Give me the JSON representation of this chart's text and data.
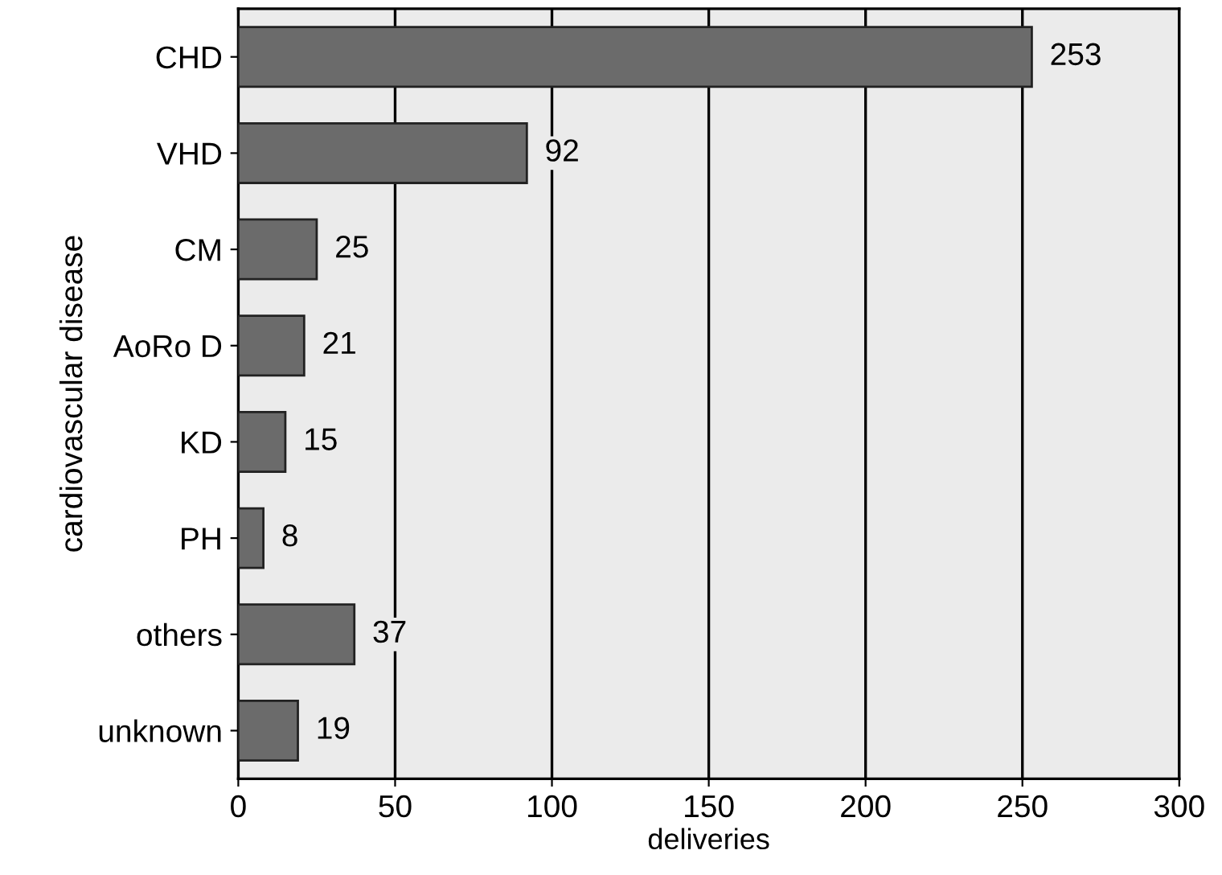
{
  "chart_data": {
    "type": "bar",
    "orientation": "horizontal",
    "xlabel": "deliveries",
    "ylabel": "cardiovascular disease",
    "categories": [
      "CHD",
      "VHD",
      "CM",
      "AoRo D",
      "KD",
      "PH",
      "others",
      "unknown"
    ],
    "values": [
      253,
      92,
      25,
      21,
      15,
      8,
      37,
      19
    ],
    "color": "#6b6b6b",
    "xlim": [
      0,
      300
    ],
    "xticks": [
      0,
      50,
      100,
      150,
      200,
      250,
      300
    ],
    "grid": "x",
    "data_labels": true
  }
}
